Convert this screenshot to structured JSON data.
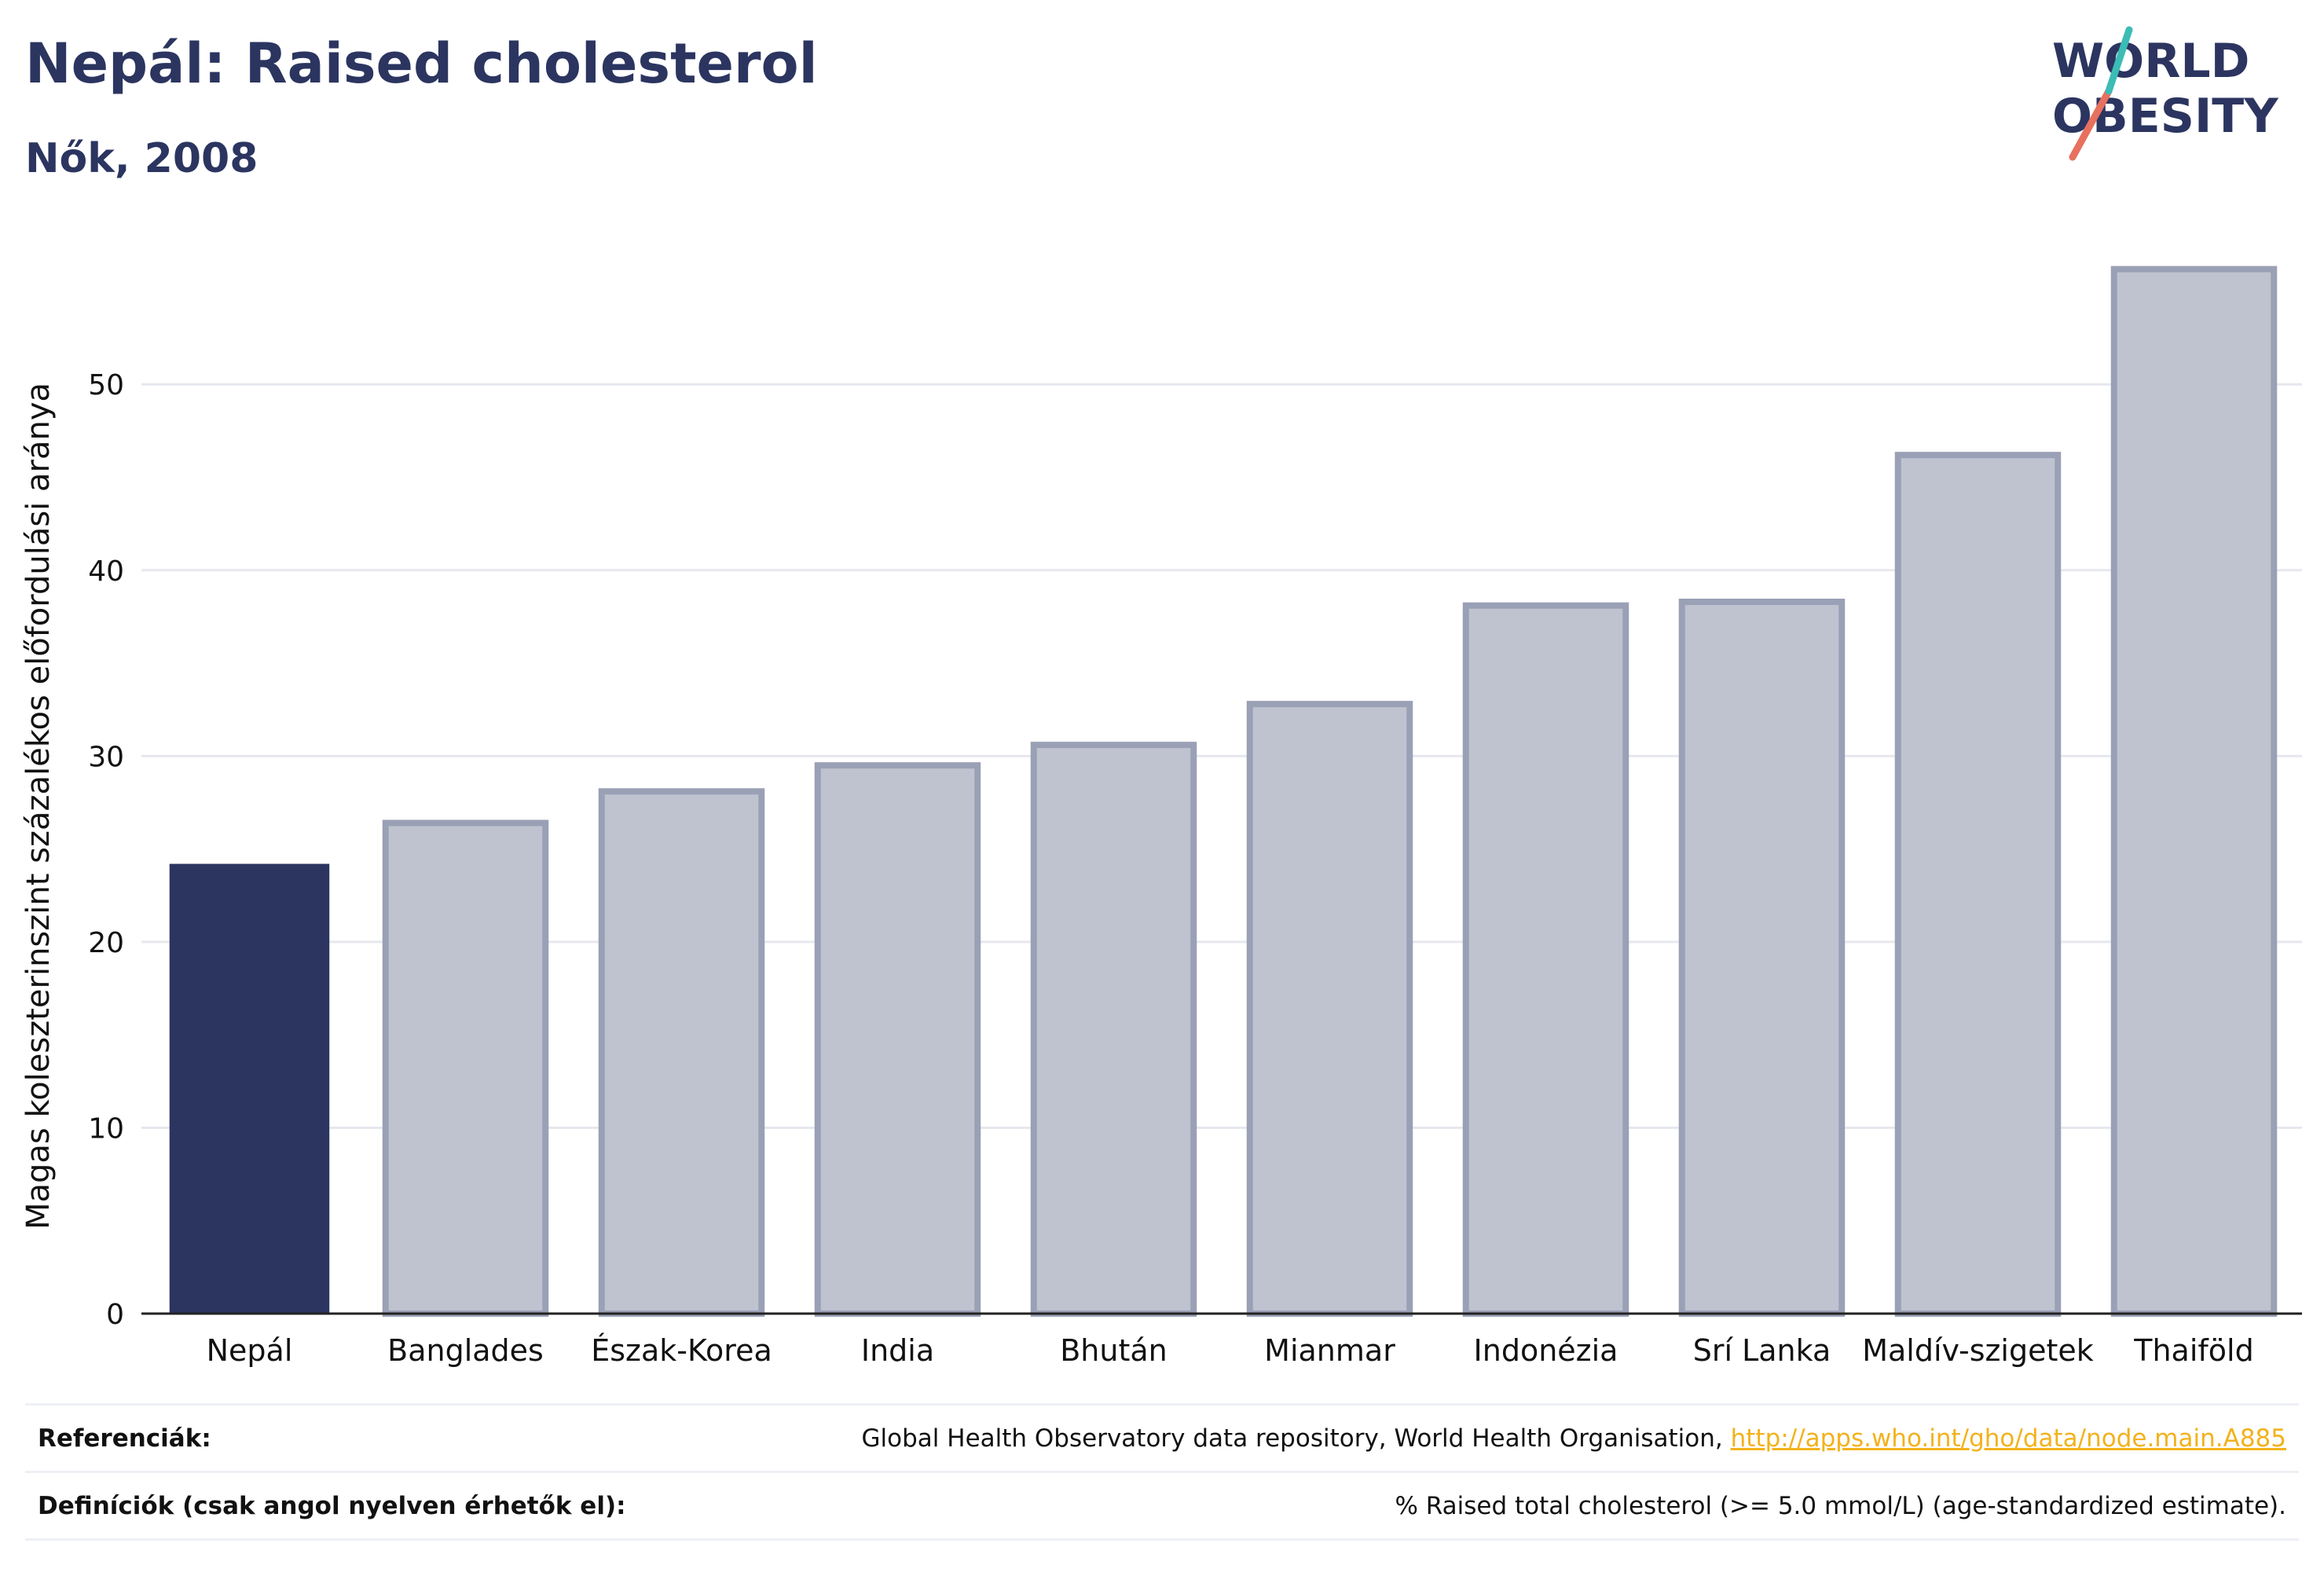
{
  "header": {
    "title": "Nepál: Raised cholesterol",
    "subtitle": "Nők, 2008"
  },
  "logo": {
    "line1": "WORLD",
    "line2": "OBESITY"
  },
  "chart_data": {
    "type": "bar",
    "categories": [
      "Nepál",
      "Banglades",
      "Észak-Korea",
      "India",
      "Bhután",
      "Mianmar",
      "Indonézia",
      "Srí Lanka",
      "Maldív-szigetek",
      "Thaiföld"
    ],
    "values": [
      24.2,
      26.4,
      28.1,
      29.5,
      30.6,
      32.8,
      38.1,
      38.3,
      46.2,
      56.2
    ],
    "highlight": "Nepál",
    "ylabel": "Magas koleszterinszint százalékos előfordulási aránya",
    "xlabel": "",
    "ylim": [
      0,
      58
    ],
    "yticks": [
      0,
      10,
      20,
      30,
      40,
      50
    ],
    "grid": true,
    "colors": {
      "highlight": "#2b3560",
      "others_fill": "#bfc3cf",
      "others_stroke": "#9aa0b5",
      "grid": "#e6e8ee",
      "axis": "#222222"
    }
  },
  "footer": {
    "references_label": "Referenciák:",
    "references_text": "Global Health Observatory data repository, World Health Organisation, ",
    "references_link": "http://apps.who.int/gho/data/node.main.A885",
    "definitions_label": "Definíciók (csak angol nyelven érhetők el):",
    "definitions_text": "% Raised total cholesterol (>= 5.0 mmol/L) (age-standardized estimate)."
  }
}
